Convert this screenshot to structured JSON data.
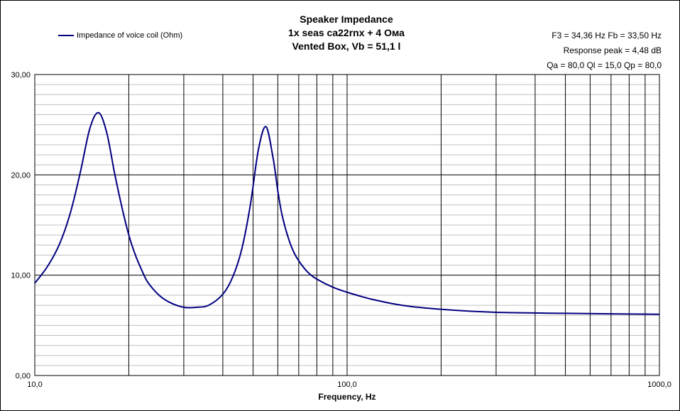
{
  "chart_data": {
    "type": "line",
    "title_lines": [
      "Speaker Impedance",
      "1x seas ca22rnx + 4 Ома",
      "Vented Box, Vb = 51,1 l"
    ],
    "legend": [
      "Impedance of voice coil (Ohm)"
    ],
    "params": [
      "F3 = 34,36  Hz   Fb = 33,50  Hz",
      "Response peak = 4,48 dB",
      "Qa = 80,0   Ql = 15,0   Qp = 80,0"
    ],
    "xlabel": "Frequency, Hz",
    "ylabel": "",
    "xscale": "log",
    "xlim": [
      10,
      1000
    ],
    "ylim": [
      0,
      30
    ],
    "x_ticks": [
      "10,0",
      "100,0",
      "1000,0"
    ],
    "y_ticks": [
      "0,00",
      "10,00",
      "20,00",
      "30,00"
    ],
    "colors": {
      "series": "#000080",
      "grid": "#000000",
      "minor_grid": "#c0c0c0"
    },
    "series": [
      {
        "name": "Impedance of voice coil (Ohm)",
        "x": [
          10,
          11,
          12,
          13,
          14,
          15,
          16,
          17,
          18,
          19,
          20,
          21,
          22,
          23,
          25,
          27,
          30,
          33,
          36,
          40,
          43,
          46,
          49,
          52,
          55,
          58,
          60,
          62,
          65,
          68,
          72,
          76,
          80,
          90,
          100,
          120,
          150,
          200,
          300,
          500,
          700,
          1000
        ],
        "values": [
          9.2,
          10.9,
          13.1,
          16.2,
          20.3,
          24.6,
          26.2,
          24.2,
          20.2,
          16.8,
          14.0,
          12.0,
          10.5,
          9.3,
          8.0,
          7.3,
          6.8,
          6.8,
          7.0,
          8.1,
          9.8,
          12.6,
          17.0,
          22.5,
          24.8,
          21.6,
          18.4,
          15.9,
          13.6,
          12.1,
          10.9,
          10.1,
          9.6,
          8.8,
          8.3,
          7.6,
          7.0,
          6.6,
          6.3,
          6.2,
          6.15,
          6.1
        ]
      }
    ]
  }
}
